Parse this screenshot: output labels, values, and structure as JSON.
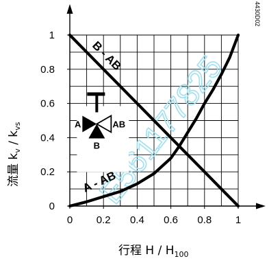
{
  "chart_data": {
    "type": "line",
    "xlim": [
      0,
      1
    ],
    "ylim": [
      0,
      1
    ],
    "grid": true,
    "xticks": [
      "0",
      "0.2",
      "0.4",
      "0.6",
      "0.8",
      "1"
    ],
    "yticks": [
      "0",
      "0.2",
      "0.4",
      "0.6",
      "0.8",
      "1"
    ],
    "xlabel": {
      "main": "行程 H / H",
      "sub": "100"
    },
    "ylabel": {
      "main": "流量 k",
      "sub1": "v",
      "mid": " / k",
      "sub2": "vs"
    },
    "series": [
      {
        "name": "B - AB",
        "x": [
          0,
          1
        ],
        "y": [
          1,
          0
        ]
      },
      {
        "name": "A - AB",
        "x": [
          0,
          0.1,
          0.2,
          0.3,
          0.4,
          0.5,
          0.6,
          0.65,
          0.7,
          0.75,
          0.8,
          0.85,
          0.9,
          0.95,
          1.0
        ],
        "y": [
          0,
          0.025,
          0.055,
          0.085,
          0.13,
          0.19,
          0.28,
          0.35,
          0.43,
          0.51,
          0.6,
          0.68,
          0.77,
          0.87,
          1.0
        ]
      }
    ],
    "annotations": {
      "intersection": {
        "x": 0.65,
        "y": 0.35
      }
    }
  },
  "valve_symbol": {
    "port_a": "A",
    "port_b": "B",
    "port_ab": "AB"
  },
  "drawing_code": "4430D02",
  "watermark": "E561177825"
}
